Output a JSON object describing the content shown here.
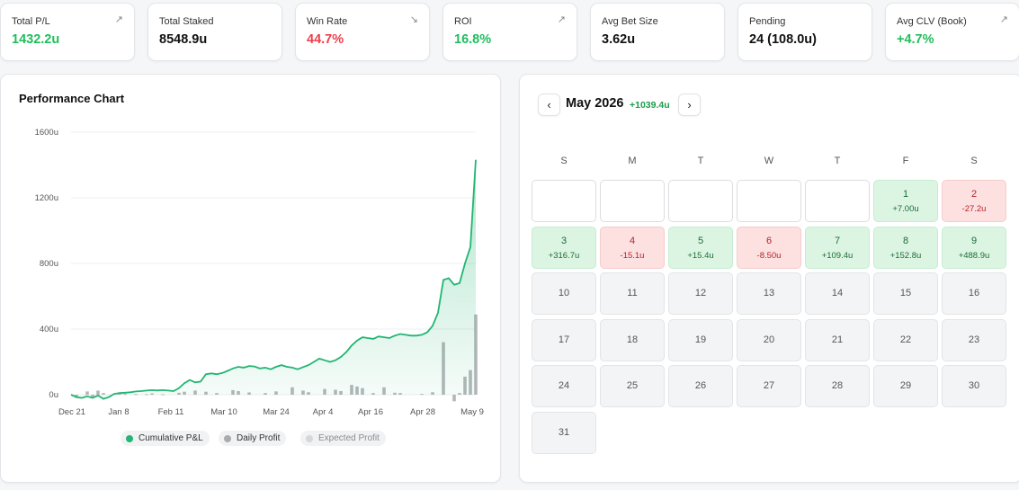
{
  "stats": [
    {
      "label": "Total P/L",
      "value": "1432.2u",
      "tone": "green",
      "arrow": "↗"
    },
    {
      "label": "Total Staked",
      "value": "8548.9u",
      "tone": "dark",
      "arrow": ""
    },
    {
      "label": "Win Rate",
      "value": "44.7%",
      "tone": "red",
      "arrow": "↘"
    },
    {
      "label": "ROI",
      "value": "16.8%",
      "tone": "green",
      "arrow": "↗"
    },
    {
      "label": "Avg Bet Size",
      "value": "3.62u",
      "tone": "dark",
      "arrow": ""
    },
    {
      "label": "Pending",
      "value": "24 (108.0u)",
      "tone": "dark",
      "arrow": ""
    },
    {
      "label": "Avg CLV (Book)",
      "value": "+4.7%",
      "tone": "green",
      "arrow": "↗"
    }
  ],
  "chart": {
    "title": "Performance Chart",
    "legend": {
      "cumulative": "Cumulative P&L",
      "daily": "Daily Profit",
      "expected": "Expected Profit"
    }
  },
  "chart_data": {
    "type": "line",
    "y_ticks": [
      "1600u",
      "1200u",
      "800u",
      "400u",
      "0u"
    ],
    "x_tick_labels": [
      "Dec 21",
      "Jan 8",
      "Feb 11",
      "Mar 10",
      "Mar 24",
      "Apr 4",
      "Apr 16",
      "Apr 28",
      "May 9"
    ],
    "ylim": [
      0,
      1600
    ],
    "series": [
      {
        "name": "Cumulative P&L",
        "color": "#22b573",
        "values": [
          0,
          -15,
          -20,
          -10,
          -20,
          -5,
          -25,
          -15,
          5,
          10,
          12,
          15,
          20,
          22,
          25,
          28,
          26,
          28,
          25,
          22,
          40,
          70,
          90,
          75,
          80,
          125,
          130,
          125,
          132,
          145,
          160,
          170,
          165,
          175,
          172,
          160,
          165,
          155,
          170,
          180,
          170,
          165,
          155,
          168,
          180,
          200,
          220,
          210,
          200,
          210,
          230,
          260,
          300,
          330,
          350,
          345,
          340,
          355,
          350,
          345,
          360,
          370,
          365,
          360,
          360,
          365,
          380,
          420,
          500,
          700,
          710,
          670,
          680,
          800,
          900,
          1432
        ]
      },
      {
        "name": "Daily Profit",
        "color": "#b4b6b9",
        "values": [
          0,
          -18,
          0,
          20,
          -18,
          25,
          10,
          0,
          0,
          6,
          5,
          0,
          4,
          0,
          3,
          8,
          0,
          3,
          0,
          0,
          12,
          18,
          0,
          25,
          0,
          18,
          0,
          10,
          0,
          0,
          28,
          22,
          0,
          14,
          0,
          0,
          10,
          0,
          20,
          0,
          0,
          45,
          0,
          25,
          15,
          0,
          0,
          35,
          0,
          30,
          22,
          0,
          60,
          50,
          40,
          0,
          10,
          0,
          45,
          0,
          12,
          10,
          0,
          0,
          0,
          5,
          0,
          15,
          0,
          320,
          0,
          -40,
          10,
          110,
          150,
          489
        ]
      }
    ]
  },
  "calendar": {
    "month": "May 2026",
    "month_pl": "+1039.4u",
    "weekdays": [
      "S",
      "M",
      "T",
      "W",
      "T",
      "F",
      "S"
    ],
    "cells": [
      {
        "day": "",
        "pl": "",
        "tone": "empty"
      },
      {
        "day": "",
        "pl": "",
        "tone": "empty"
      },
      {
        "day": "",
        "pl": "",
        "tone": "empty"
      },
      {
        "day": "",
        "pl": "",
        "tone": "empty"
      },
      {
        "day": "",
        "pl": "",
        "tone": "empty"
      },
      {
        "day": "1",
        "pl": "+7.00u",
        "tone": "win"
      },
      {
        "day": "2",
        "pl": "-27.2u",
        "tone": "loss"
      },
      {
        "day": "3",
        "pl": "+316.7u",
        "tone": "win"
      },
      {
        "day": "4",
        "pl": "-15.1u",
        "tone": "loss"
      },
      {
        "day": "5",
        "pl": "+15.4u",
        "tone": "win"
      },
      {
        "day": "6",
        "pl": "-8.50u",
        "tone": "loss"
      },
      {
        "day": "7",
        "pl": "+109.4u",
        "tone": "win"
      },
      {
        "day": "8",
        "pl": "+152.8u",
        "tone": "win"
      },
      {
        "day": "9",
        "pl": "+488.9u",
        "tone": "win"
      },
      {
        "day": "10",
        "pl": "",
        "tone": "neutral"
      },
      {
        "day": "11",
        "pl": "",
        "tone": "neutral"
      },
      {
        "day": "12",
        "pl": "",
        "tone": "neutral"
      },
      {
        "day": "13",
        "pl": "",
        "tone": "neutral"
      },
      {
        "day": "14",
        "pl": "",
        "tone": "neutral"
      },
      {
        "day": "15",
        "pl": "",
        "tone": "neutral"
      },
      {
        "day": "16",
        "pl": "",
        "tone": "neutral"
      },
      {
        "day": "17",
        "pl": "",
        "tone": "neutral"
      },
      {
        "day": "18",
        "pl": "",
        "tone": "neutral"
      },
      {
        "day": "19",
        "pl": "",
        "tone": "neutral"
      },
      {
        "day": "20",
        "pl": "",
        "tone": "neutral"
      },
      {
        "day": "21",
        "pl": "",
        "tone": "neutral"
      },
      {
        "day": "22",
        "pl": "",
        "tone": "neutral"
      },
      {
        "day": "23",
        "pl": "",
        "tone": "neutral"
      },
      {
        "day": "24",
        "pl": "",
        "tone": "neutral"
      },
      {
        "day": "25",
        "pl": "",
        "tone": "neutral"
      },
      {
        "day": "26",
        "pl": "",
        "tone": "neutral"
      },
      {
        "day": "27",
        "pl": "",
        "tone": "neutral"
      },
      {
        "day": "28",
        "pl": "",
        "tone": "neutral"
      },
      {
        "day": "29",
        "pl": "",
        "tone": "neutral"
      },
      {
        "day": "30",
        "pl": "",
        "tone": "neutral"
      },
      {
        "day": "31",
        "pl": "",
        "tone": "neutral"
      }
    ]
  }
}
